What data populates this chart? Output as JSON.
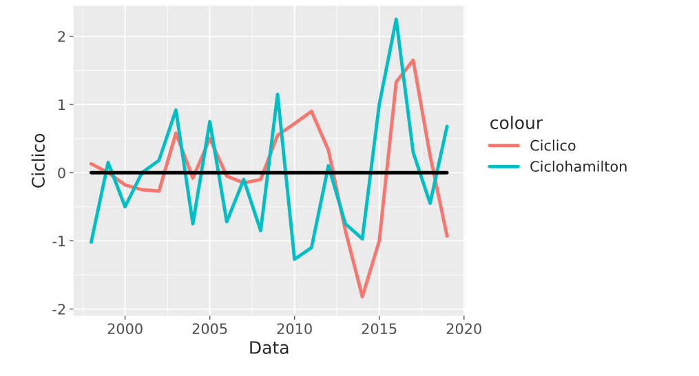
{
  "chart_data": {
    "type": "line",
    "xlabel": "Data",
    "ylabel": "Ciclico",
    "legend_title": "colour",
    "legend": "right",
    "grid": true,
    "x": [
      1998,
      1999,
      2000,
      2001,
      2002,
      2003,
      2004,
      2005,
      2006,
      2007,
      2008,
      2009,
      2010,
      2011,
      2012,
      2013,
      2014,
      2015,
      2016,
      2017,
      2018,
      2019
    ],
    "series": [
      {
        "name": "Ciclico",
        "color": "#f8766d",
        "values": [
          0.13,
          0.0,
          -0.18,
          -0.25,
          -0.27,
          0.58,
          -0.08,
          0.5,
          -0.05,
          -0.15,
          -0.1,
          0.55,
          0.72,
          0.9,
          0.33,
          -0.85,
          -1.82,
          -1.0,
          1.33,
          1.65,
          0.25,
          -0.93
        ]
      },
      {
        "name": "Ciclohamilton",
        "color": "#00bfc4",
        "values": [
          -1.02,
          0.15,
          -0.5,
          0.0,
          0.18,
          0.92,
          -0.75,
          0.75,
          -0.72,
          -0.1,
          -0.85,
          1.15,
          -1.27,
          -1.1,
          0.1,
          -0.75,
          -0.97,
          1.0,
          2.25,
          0.3,
          -0.45,
          0.68
        ]
      },
      {
        "color": "#000000",
        "x": [
          1998,
          2019
        ],
        "values": [
          0,
          0
        ]
      }
    ],
    "xlim": [
      1996.95,
      2020.05
    ],
    "ylim": [
      -2.1,
      2.45
    ],
    "xticks": [
      2000,
      2005,
      2010,
      2015,
      2020
    ],
    "yticks": [
      -2,
      -1,
      0,
      1,
      2
    ]
  }
}
